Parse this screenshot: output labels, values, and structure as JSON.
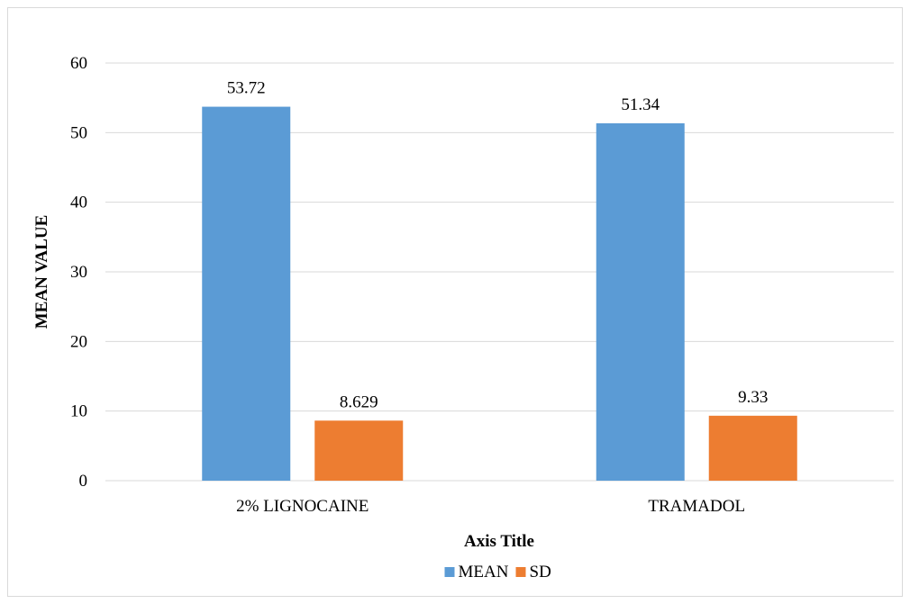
{
  "chart_data": {
    "type": "bar",
    "categories": [
      "2% LIGNOCAINE",
      "TRAMADOL"
    ],
    "series": [
      {
        "name": "MEAN",
        "values": [
          53.72,
          51.34
        ],
        "labels": [
          "53.72",
          "51.34"
        ],
        "color": "#5b9bd5"
      },
      {
        "name": "SD",
        "values": [
          8.629,
          9.33
        ],
        "labels": [
          "8.629",
          "9.33"
        ],
        "color": "#ed7d31"
      }
    ],
    "title": "",
    "xlabel": "Axis Title",
    "ylabel": "MEAN VALUE",
    "ylim": [
      0,
      60
    ],
    "yticks": [
      0,
      10,
      20,
      30,
      40,
      50,
      60
    ],
    "ytick_labels": [
      "0",
      "10",
      "20",
      "30",
      "40",
      "50",
      "60"
    ],
    "grid": true,
    "legend_position": "bottom",
    "gridline_color": "#d9d9d9"
  }
}
